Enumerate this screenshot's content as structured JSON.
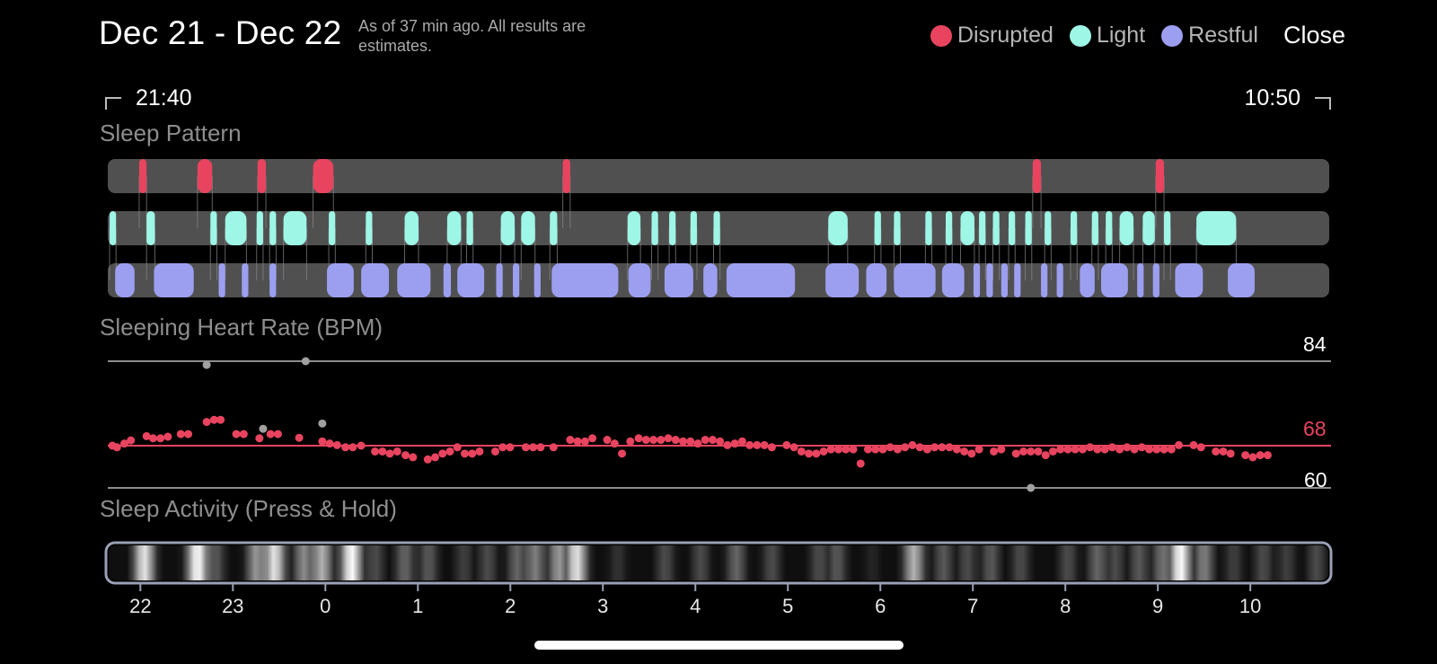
{
  "header": {
    "date_range": "Dec 21 - Dec 22",
    "note": "As of 37 min ago. All results are estimates.",
    "close_label": "Close"
  },
  "legend": [
    {
      "label": "Disrupted",
      "color": "#e8445f"
    },
    {
      "label": "Light",
      "color": "#9ef6e6"
    },
    {
      "label": "Restful",
      "color": "#9c9ff0"
    }
  ],
  "time_range": {
    "start": "21:40",
    "end": "10:50"
  },
  "sections": {
    "sleep_pattern": "Sleep Pattern",
    "heart_rate": "Sleeping Heart Rate (BPM)",
    "activity": "Sleep Activity (Press & Hold)"
  },
  "heart_rate": {
    "max_label": "84",
    "avg_label": "68",
    "min_label": "60",
    "max": 84,
    "avg": 68,
    "min": 60
  },
  "hour_ticks": [
    "22",
    "23",
    "0",
    "1",
    "2",
    "3",
    "4",
    "5",
    "6",
    "7",
    "8",
    "9",
    "10"
  ],
  "colors": {
    "disrupted": "#e8445f",
    "light": "#9ef6e6",
    "restful": "#9c9ff0",
    "track": "#505050",
    "muted_dot": "#a0a0a0"
  },
  "chart_data": {
    "type": "scatter",
    "x_unit": "hours since 21:40",
    "ylabel": "BPM",
    "ylim": [
      60,
      84
    ],
    "sleep_pattern": {
      "disrupted": [
        [
          0.32,
          0.4
        ],
        [
          0.95,
          1.11
        ],
        [
          1.6,
          1.69
        ],
        [
          2.2,
          2.42
        ],
        [
          4.9,
          4.98
        ],
        [
          9.98,
          10.07
        ],
        [
          11.31,
          11.4
        ]
      ],
      "light": [
        [
          0.0,
          0.07
        ],
        [
          0.4,
          0.49
        ],
        [
          1.09,
          1.16
        ],
        [
          1.25,
          1.48
        ],
        [
          1.59,
          1.66
        ],
        [
          1.73,
          1.8
        ],
        [
          1.88,
          2.13
        ],
        [
          2.37,
          2.44
        ],
        [
          2.77,
          2.84
        ],
        [
          3.19,
          3.34
        ],
        [
          3.65,
          3.8
        ],
        [
          3.86,
          3.93
        ],
        [
          4.23,
          4.38
        ],
        [
          4.45,
          4.6
        ],
        [
          4.76,
          4.84
        ],
        [
          5.6,
          5.74
        ],
        [
          5.86,
          5.93
        ],
        [
          6.05,
          6.12
        ],
        [
          6.28,
          6.35
        ],
        [
          6.53,
          6.6
        ],
        [
          7.77,
          7.98
        ],
        [
          8.27,
          8.34
        ],
        [
          8.48,
          8.55
        ],
        [
          8.82,
          8.89
        ],
        [
          9.04,
          9.11
        ],
        [
          9.2,
          9.35
        ],
        [
          9.4,
          9.47
        ],
        [
          9.55,
          9.62
        ],
        [
          9.72,
          9.79
        ],
        [
          9.9,
          9.97
        ],
        [
          10.11,
          10.18
        ],
        [
          10.39,
          10.46
        ],
        [
          10.62,
          10.69
        ],
        [
          10.77,
          10.84
        ],
        [
          10.92,
          11.07
        ],
        [
          11.17,
          11.3
        ],
        [
          11.4,
          11.47
        ],
        [
          11.75,
          12.18
        ]
      ],
      "restful": [
        [
          0.06,
          0.27
        ],
        [
          0.48,
          0.91
        ],
        [
          1.18,
          1.25
        ],
        [
          1.43,
          1.5
        ],
        [
          1.73,
          1.8
        ],
        [
          2.35,
          2.64
        ],
        [
          2.72,
          3.02
        ],
        [
          3.11,
          3.47
        ],
        [
          3.61,
          3.69
        ],
        [
          3.76,
          4.05
        ],
        [
          4.18,
          4.25
        ],
        [
          4.36,
          4.43
        ],
        [
          4.59,
          4.66
        ],
        [
          4.78,
          5.5
        ],
        [
          5.61,
          5.85
        ],
        [
          6.0,
          6.31
        ],
        [
          6.42,
          6.57
        ],
        [
          6.67,
          7.41
        ],
        [
          7.74,
          8.1
        ],
        [
          8.18,
          8.4
        ],
        [
          8.48,
          8.93
        ],
        [
          9.0,
          9.24
        ],
        [
          9.34,
          9.41
        ],
        [
          9.48,
          9.55
        ],
        [
          9.64,
          9.71
        ],
        [
          9.78,
          9.85
        ],
        [
          10.07,
          10.14
        ],
        [
          10.24,
          10.31
        ],
        [
          10.49,
          10.65
        ],
        [
          10.72,
          11.01
        ],
        [
          11.11,
          11.18
        ],
        [
          11.28,
          11.35
        ],
        [
          11.52,
          11.82
        ],
        [
          12.09,
          12.38
        ]
      ]
    },
    "heart_rate_points": [
      [
        0.03,
        68
      ],
      [
        0.08,
        67.7
      ],
      [
        0.16,
        68.4
      ],
      [
        0.23,
        69
      ],
      [
        0.4,
        69.8
      ],
      [
        0.47,
        69.4
      ],
      [
        0.55,
        69.4
      ],
      [
        0.63,
        69.7
      ],
      [
        0.77,
        70.2
      ],
      [
        0.85,
        70.2
      ],
      [
        1.05,
        72.5
      ],
      [
        1.13,
        72.9
      ],
      [
        1.2,
        72.9
      ],
      [
        1.37,
        70.2
      ],
      [
        1.45,
        70.2
      ],
      [
        1.62,
        69.4
      ],
      [
        1.74,
        70.2
      ],
      [
        1.82,
        70.2
      ],
      [
        2.05,
        69.5
      ],
      [
        2.3,
        68.8
      ],
      [
        2.38,
        68.4
      ],
      [
        2.46,
        68.1
      ],
      [
        2.55,
        67.7
      ],
      [
        2.63,
        67.7
      ],
      [
        2.72,
        68.0
      ],
      [
        2.87,
        66.9
      ],
      [
        2.95,
        66.9
      ],
      [
        3.03,
        66.5
      ],
      [
        3.11,
        66.9
      ],
      [
        3.2,
        66.2
      ],
      [
        3.28,
        65.8
      ],
      [
        3.44,
        65.4
      ],
      [
        3.52,
        65.8
      ],
      [
        3.6,
        66.5
      ],
      [
        3.68,
        66.9
      ],
      [
        3.76,
        67.7
      ],
      [
        3.84,
        66.5
      ],
      [
        3.92,
        66.5
      ],
      [
        4.0,
        66.9
      ],
      [
        4.17,
        66.9
      ],
      [
        4.25,
        67.7
      ],
      [
        4.33,
        67.7
      ],
      [
        4.5,
        67.7
      ],
      [
        4.58,
        67.7
      ],
      [
        4.66,
        67.7
      ],
      [
        4.8,
        67.7
      ],
      [
        4.98,
        69.1
      ],
      [
        5.06,
        68.8
      ],
      [
        5.14,
        68.8
      ],
      [
        5.22,
        69.4
      ],
      [
        5.38,
        69.1
      ],
      [
        5.46,
        68.4
      ],
      [
        5.54,
        66.5
      ],
      [
        5.63,
        68.8
      ],
      [
        5.72,
        69.4
      ],
      [
        5.8,
        69.1
      ],
      [
        5.88,
        69.1
      ],
      [
        5.96,
        69.1
      ],
      [
        6.04,
        69.4
      ],
      [
        6.12,
        69.1
      ],
      [
        6.2,
        68.8
      ],
      [
        6.28,
        68.8
      ],
      [
        6.36,
        68.4
      ],
      [
        6.44,
        69.1
      ],
      [
        6.52,
        69.1
      ],
      [
        6.6,
        68.8
      ],
      [
        6.68,
        68.1
      ],
      [
        6.76,
        68.4
      ],
      [
        6.84,
        68.8
      ],
      [
        6.92,
        68.1
      ],
      [
        7.0,
        68.1
      ],
      [
        7.08,
        68.1
      ],
      [
        7.16,
        67.7
      ],
      [
        7.32,
        68.1
      ],
      [
        7.4,
        67.7
      ],
      [
        7.48,
        66.9
      ],
      [
        7.56,
        66.5
      ],
      [
        7.64,
        66.5
      ],
      [
        7.72,
        66.9
      ],
      [
        7.8,
        67.3
      ],
      [
        7.88,
        67.3
      ],
      [
        7.96,
        67.3
      ],
      [
        8.04,
        67.3
      ],
      [
        8.12,
        64.6
      ],
      [
        8.2,
        67.3
      ],
      [
        8.28,
        67.3
      ],
      [
        8.36,
        67.3
      ],
      [
        8.44,
        67.7
      ],
      [
        8.52,
        67.3
      ],
      [
        8.6,
        67.7
      ],
      [
        8.68,
        68.1
      ],
      [
        8.76,
        67.7
      ],
      [
        8.84,
        67.3
      ],
      [
        8.92,
        67.7
      ],
      [
        9.0,
        67.7
      ],
      [
        9.08,
        67.7
      ],
      [
        9.16,
        67.3
      ],
      [
        9.24,
        66.9
      ],
      [
        9.32,
        66.5
      ],
      [
        9.4,
        67.3
      ],
      [
        9.56,
        66.9
      ],
      [
        9.64,
        67.3
      ],
      [
        9.8,
        66.5
      ],
      [
        9.88,
        66.9
      ],
      [
        9.96,
        66.9
      ],
      [
        10.04,
        66.9
      ],
      [
        10.12,
        66.2
      ],
      [
        10.2,
        66.9
      ],
      [
        10.28,
        67.3
      ],
      [
        10.36,
        67.3
      ],
      [
        10.44,
        67.3
      ],
      [
        10.52,
        67.3
      ],
      [
        10.6,
        67.7
      ],
      [
        10.68,
        67.3
      ],
      [
        10.76,
        67.3
      ],
      [
        10.84,
        67.7
      ],
      [
        10.92,
        67.3
      ],
      [
        11.0,
        67.7
      ],
      [
        11.08,
        67.3
      ],
      [
        11.16,
        67.7
      ],
      [
        11.24,
        67.3
      ],
      [
        11.32,
        67.3
      ],
      [
        11.4,
        67.3
      ],
      [
        11.48,
        67.3
      ],
      [
        11.56,
        68.1
      ],
      [
        11.72,
        68.1
      ],
      [
        11.8,
        67.7
      ],
      [
        11.96,
        66.9
      ],
      [
        12.04,
        66.9
      ],
      [
        12.12,
        66.5
      ],
      [
        12.28,
        66.2
      ],
      [
        12.36,
        65.8
      ],
      [
        12.44,
        66.2
      ],
      [
        12.52,
        66.2
      ]
    ],
    "heart_rate_points_muted": [
      [
        1.05,
        83.3
      ],
      [
        1.66,
        71.2
      ],
      [
        2.12,
        84
      ],
      [
        2.3,
        72.2
      ],
      [
        9.96,
        60
      ]
    ]
  }
}
